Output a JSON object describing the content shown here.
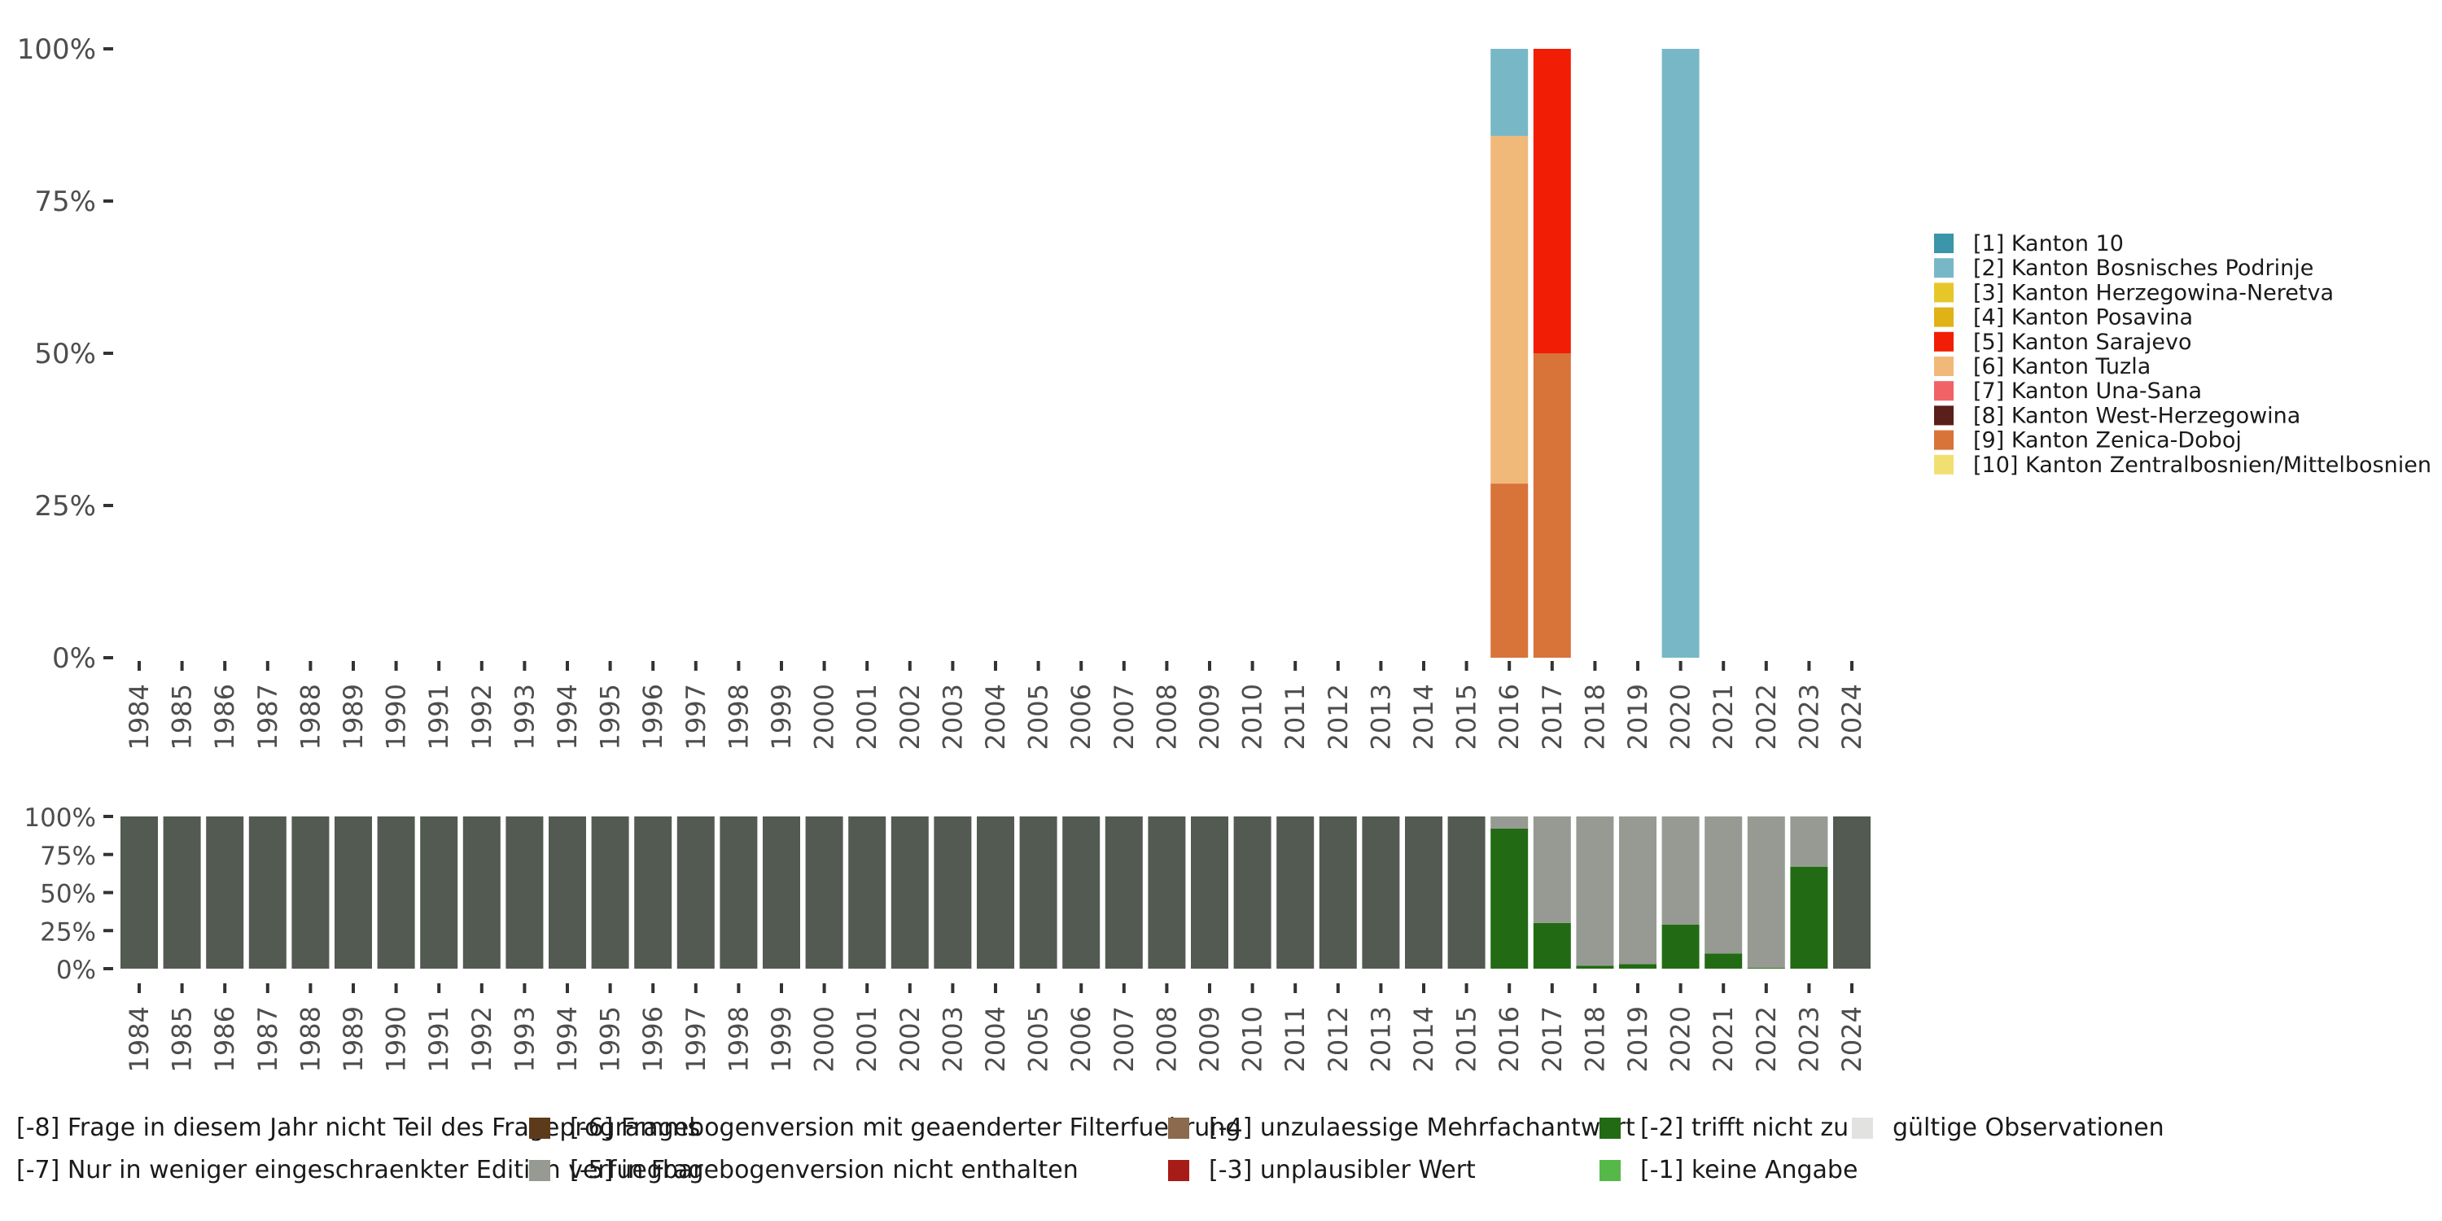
{
  "chart_data": [
    {
      "type": "bar",
      "stacked": true,
      "percent": true,
      "title": "",
      "xlabel": "",
      "ylabel": "",
      "ylim": [
        0,
        100
      ],
      "y_ticks": [
        "0%",
        "25%",
        "50%",
        "75%",
        "100%"
      ],
      "categories": [
        "1984",
        "1985",
        "1986",
        "1987",
        "1988",
        "1989",
        "1990",
        "1991",
        "1992",
        "1993",
        "1994",
        "1995",
        "1996",
        "1997",
        "1998",
        "1999",
        "2000",
        "2001",
        "2002",
        "2003",
        "2004",
        "2005",
        "2006",
        "2007",
        "2008",
        "2009",
        "2010",
        "2011",
        "2012",
        "2013",
        "2014",
        "2015",
        "2016",
        "2017",
        "2018",
        "2019",
        "2020",
        "2021",
        "2022",
        "2023",
        "2024"
      ],
      "legend_position": "right",
      "legend": [
        {
          "label": "[1] Kanton 10",
          "color": "#3a96a8"
        },
        {
          "label": "[2] Kanton Bosnisches Podrinje",
          "color": "#78b8c6"
        },
        {
          "label": "[3] Kanton Herzegowina-Neretva",
          "color": "#e6c72a"
        },
        {
          "label": "[4] Kanton Posavina",
          "color": "#e0b218"
        },
        {
          "label": "[5] Kanton Sarajevo",
          "color": "#f21d05"
        },
        {
          "label": "[6] Kanton Tuzla",
          "color": "#f0b97a"
        },
        {
          "label": "[7] Kanton Una-Sana",
          "color": "#f06266"
        },
        {
          "label": "[8] Kanton West-Herzegowina",
          "color": "#5a1f1a"
        },
        {
          "label": "[9] Kanton Zenica-Doboj",
          "color": "#d8733a"
        },
        {
          "label": "[10] Kanton Zentralbosnien/Mittelbosnien",
          "color": "#f2df72"
        }
      ],
      "bars": [
        {
          "category": "2016",
          "segments": [
            {
              "series": "[9] Kanton Zenica-Doboj",
              "value": 28.6,
              "color": "#d8733a"
            },
            {
              "series": "[6] Kanton Tuzla",
              "value": 57.1,
              "color": "#f0b97a"
            },
            {
              "series": "[2] Kanton Bosnisches Podrinje",
              "value": 14.3,
              "color": "#78b8c6"
            }
          ]
        },
        {
          "category": "2017",
          "segments": [
            {
              "series": "[9] Kanton Zenica-Doboj",
              "value": 50,
              "color": "#d8733a"
            },
            {
              "series": "[5] Kanton Sarajevo",
              "value": 50,
              "color": "#f21d05"
            }
          ]
        },
        {
          "category": "2020",
          "segments": [
            {
              "series": "[2] Kanton Bosnisches Podrinje",
              "value": 100,
              "color": "#78b8c6"
            }
          ]
        }
      ]
    },
    {
      "type": "bar",
      "stacked": true,
      "percent": true,
      "title": "",
      "xlabel": "",
      "ylabel": "",
      "ylim": [
        0,
        100
      ],
      "y_ticks": [
        "0%",
        "25%",
        "50%",
        "75%",
        "100%"
      ],
      "categories": [
        "1984",
        "1985",
        "1986",
        "1987",
        "1988",
        "1989",
        "1990",
        "1991",
        "1992",
        "1993",
        "1994",
        "1995",
        "1996",
        "1997",
        "1998",
        "1999",
        "2000",
        "2001",
        "2002",
        "2003",
        "2004",
        "2005",
        "2006",
        "2007",
        "2008",
        "2009",
        "2010",
        "2011",
        "2012",
        "2013",
        "2014",
        "2015",
        "2016",
        "2017",
        "2018",
        "2019",
        "2020",
        "2021",
        "2022",
        "2023",
        "2024"
      ],
      "legend_position": "bottom",
      "legend": [
        {
          "label": "[-8] Frage in diesem Jahr nicht Teil des Frageprogramms",
          "color": "#535a52"
        },
        {
          "label": "[-7] Nur in weniger eingeschraenkter Edition verfuegbar",
          "color": "#c7c7c0"
        },
        {
          "label": "[-6] Fragebogenversion mit geaenderter Filterfuehrung",
          "color": "#5c3a1a"
        },
        {
          "label": "[-5] in Fragebogenversion nicht enthalten",
          "color": "#969a92"
        },
        {
          "label": "[-4] unzulaessige Mehrfachantwort",
          "color": "#8b6a4e"
        },
        {
          "label": "[-3] unplausibler Wert",
          "color": "#a71c16"
        },
        {
          "label": "[-2] trifft nicht zu",
          "color": "#226b14"
        },
        {
          "label": "[-1] keine Angabe",
          "color": "#56b848"
        },
        {
          "label": "gültige Observationen",
          "color": "#e2e2e0"
        }
      ],
      "series": [
        {
          "name": "[-2] trifft nicht zu",
          "color": "#226b14",
          "values": [
            0,
            0,
            0,
            0,
            0,
            0,
            0,
            0,
            0,
            0,
            0,
            0,
            0,
            0,
            0,
            0,
            0,
            0,
            0,
            0,
            0,
            0,
            0,
            0,
            0,
            0,
            0,
            0,
            0,
            0,
            0,
            0,
            92,
            30,
            2,
            3,
            29,
            10,
            0.5,
            67,
            0
          ]
        },
        {
          "name": "[-5] in Fragebogenversion nicht enthalten",
          "color": "#969a92",
          "values": [
            0,
            0,
            0,
            0,
            0,
            0,
            0,
            0,
            0,
            0,
            0,
            0,
            0,
            0,
            0,
            0,
            0,
            0,
            0,
            0,
            0,
            0,
            0,
            0,
            0,
            0,
            0,
            0,
            0,
            0,
            0,
            0,
            8,
            70,
            98,
            97,
            71,
            90,
            99.5,
            33,
            0
          ]
        },
        {
          "name": "[-8] Frage in diesem Jahr nicht Teil des Frageprogramms",
          "color": "#535a52",
          "values": [
            100,
            100,
            100,
            100,
            100,
            100,
            100,
            100,
            100,
            100,
            100,
            100,
            100,
            100,
            100,
            100,
            100,
            100,
            100,
            100,
            100,
            100,
            100,
            100,
            100,
            100,
            100,
            100,
            100,
            100,
            100,
            100,
            0,
            0,
            0,
            0,
            0,
            0,
            0,
            0,
            100
          ]
        }
      ]
    }
  ]
}
